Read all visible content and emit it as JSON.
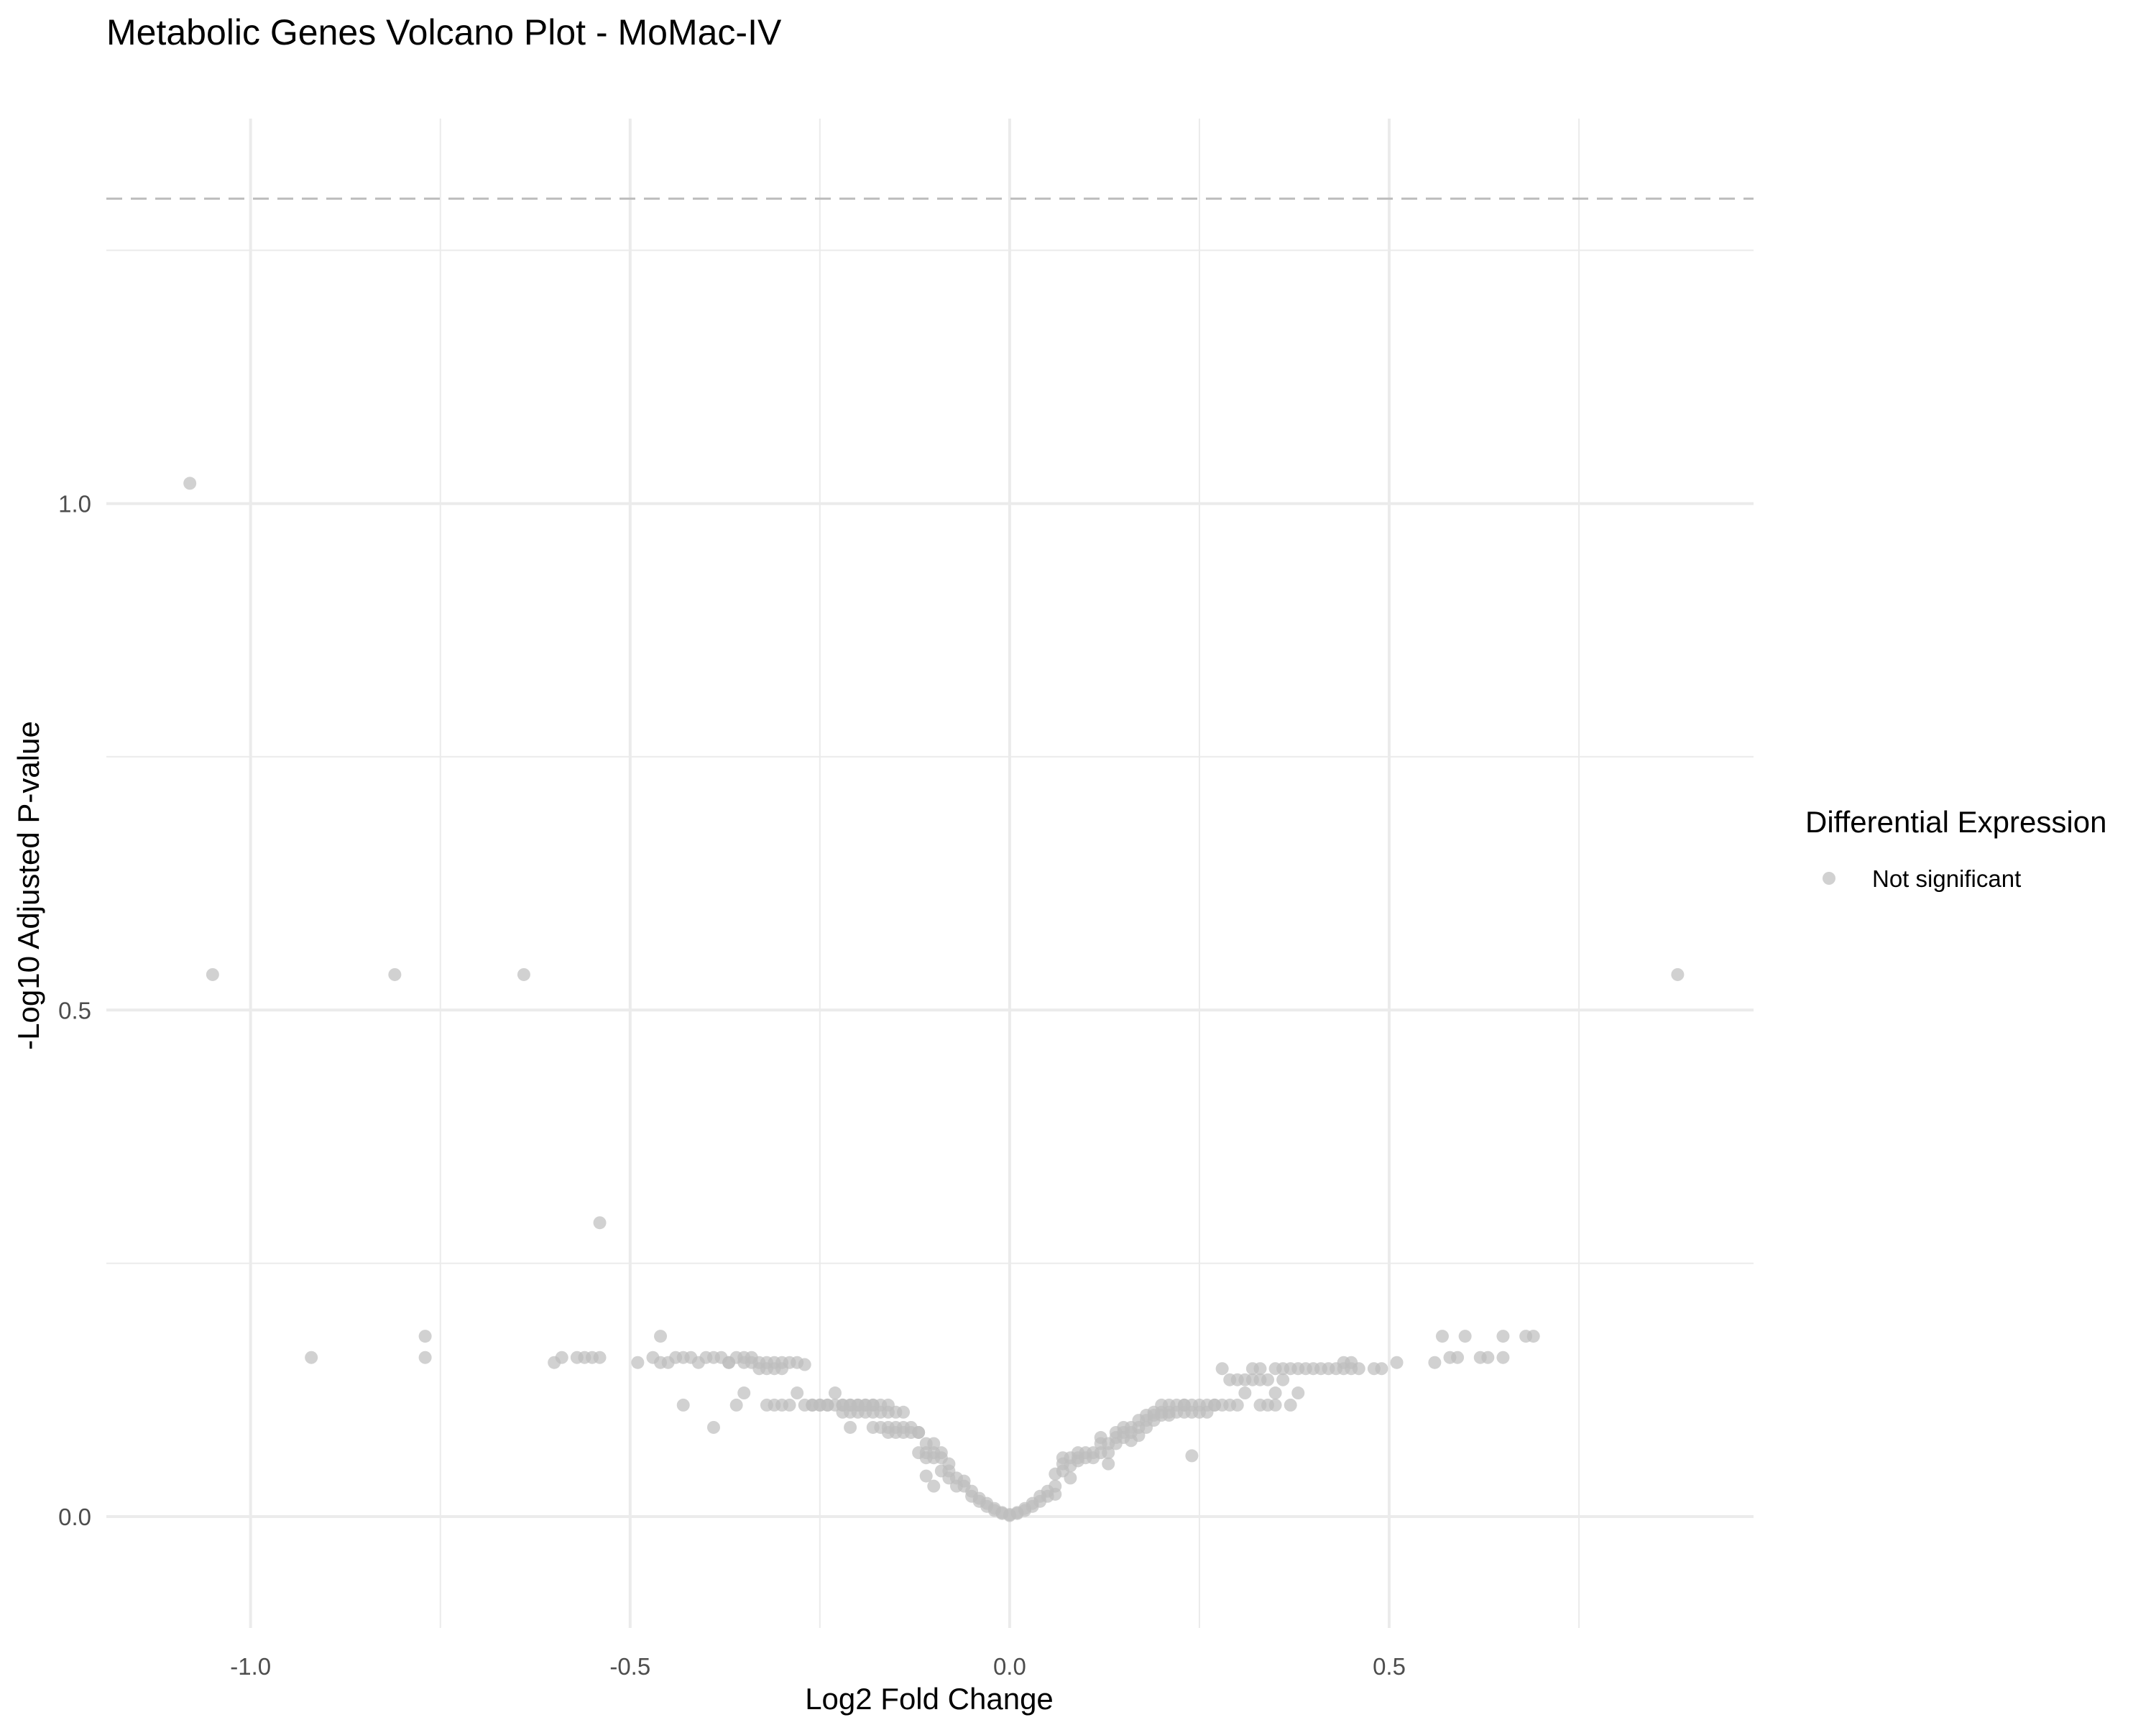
{
  "chart_data": {
    "type": "scatter",
    "title": "Metabolic Genes Volcano Plot - MoMac-IV",
    "xlabel": "Log2 Fold Change",
    "ylabel": "-Log10 Adjusted P-value",
    "xlim": [
      -1.19,
      0.98
    ],
    "ylim": [
      -0.11,
      1.38
    ],
    "x_ticks": [
      -1.0,
      -0.5,
      0.0,
      0.5
    ],
    "x_tick_labels": [
      "-1.0",
      "-0.5",
      "0.0",
      "0.5"
    ],
    "y_ticks": [
      0.0,
      0.5,
      1.0
    ],
    "y_tick_labels": [
      "0.0",
      "0.5",
      "1.0"
    ],
    "threshold_line_y": 1.301,
    "grid": true,
    "legend": {
      "title": "Differential Expression",
      "position": "right",
      "entries": [
        {
          "label": "Not significant",
          "color": "#bdbdbd"
        }
      ]
    },
    "series": [
      {
        "name": "Not significant",
        "color": "#bdbdbd",
        "points": [
          [
            -1.08,
            1.02
          ],
          [
            -1.05,
            0.535
          ],
          [
            -0.81,
            0.535
          ],
          [
            -0.64,
            0.535
          ],
          [
            0.88,
            0.535
          ],
          [
            -0.54,
            0.29
          ],
          [
            -0.92,
            0.157
          ],
          [
            -0.77,
            0.178
          ],
          [
            -0.77,
            0.157
          ],
          [
            -0.6,
            0.152
          ],
          [
            -0.59,
            0.157
          ],
          [
            -0.57,
            0.157
          ],
          [
            -0.56,
            0.157
          ],
          [
            -0.55,
            0.157
          ],
          [
            -0.54,
            0.157
          ],
          [
            -0.49,
            0.152
          ],
          [
            -0.47,
            0.157
          ],
          [
            -0.46,
            0.178
          ],
          [
            -0.46,
            0.152
          ],
          [
            -0.45,
            0.152
          ],
          [
            -0.44,
            0.157
          ],
          [
            -0.43,
            0.157
          ],
          [
            -0.43,
            0.11
          ],
          [
            -0.42,
            0.157
          ],
          [
            -0.41,
            0.152
          ],
          [
            -0.4,
            0.157
          ],
          [
            -0.39,
            0.157
          ],
          [
            -0.39,
            0.088
          ],
          [
            -0.38,
            0.157
          ],
          [
            -0.37,
            0.152
          ],
          [
            -0.37,
            0.152
          ],
          [
            -0.36,
            0.157
          ],
          [
            -0.36,
            0.11
          ],
          [
            -0.35,
            0.157
          ],
          [
            -0.35,
            0.152
          ],
          [
            -0.35,
            0.122
          ],
          [
            -0.34,
            0.152
          ],
          [
            -0.34,
            0.157
          ],
          [
            -0.33,
            0.152
          ],
          [
            -0.33,
            0.146
          ],
          [
            -0.32,
            0.152
          ],
          [
            -0.32,
            0.11
          ],
          [
            -0.32,
            0.146
          ],
          [
            -0.31,
            0.152
          ],
          [
            -0.31,
            0.11
          ],
          [
            -0.31,
            0.146
          ],
          [
            -0.3,
            0.152
          ],
          [
            -0.3,
            0.11
          ],
          [
            -0.3,
            0.146
          ],
          [
            -0.29,
            0.152
          ],
          [
            -0.29,
            0.11
          ],
          [
            -0.28,
            0.152
          ],
          [
            -0.28,
            0.122
          ],
          [
            -0.27,
            0.15
          ],
          [
            -0.27,
            0.11
          ],
          [
            -0.26,
            0.11
          ],
          [
            -0.26,
            0.11
          ],
          [
            -0.25,
            0.11
          ],
          [
            -0.25,
            0.11
          ],
          [
            -0.24,
            0.11
          ],
          [
            -0.24,
            0.11
          ],
          [
            -0.23,
            0.122
          ],
          [
            -0.23,
            0.11
          ],
          [
            -0.22,
            0.11
          ],
          [
            -0.22,
            0.11
          ],
          [
            -0.22,
            0.103
          ],
          [
            -0.21,
            0.11
          ],
          [
            -0.21,
            0.11
          ],
          [
            -0.21,
            0.103
          ],
          [
            -0.21,
            0.088
          ],
          [
            -0.2,
            0.11
          ],
          [
            -0.2,
            0.11
          ],
          [
            -0.2,
            0.103
          ],
          [
            -0.19,
            0.11
          ],
          [
            -0.19,
            0.103
          ],
          [
            -0.19,
            0.11
          ],
          [
            -0.18,
            0.11
          ],
          [
            -0.18,
            0.11
          ],
          [
            -0.18,
            0.103
          ],
          [
            -0.18,
            0.088
          ],
          [
            -0.17,
            0.11
          ],
          [
            -0.17,
            0.103
          ],
          [
            -0.17,
            0.088
          ],
          [
            -0.16,
            0.11
          ],
          [
            -0.16,
            0.103
          ],
          [
            -0.16,
            0.088
          ],
          [
            -0.16,
            0.083
          ],
          [
            -0.15,
            0.103
          ],
          [
            -0.15,
            0.088
          ],
          [
            -0.15,
            0.083
          ],
          [
            -0.14,
            0.103
          ],
          [
            -0.14,
            0.088
          ],
          [
            -0.14,
            0.083
          ],
          [
            -0.13,
            0.088
          ],
          [
            -0.13,
            0.083
          ],
          [
            -0.12,
            0.083
          ],
          [
            -0.12,
            0.083
          ],
          [
            -0.12,
            0.063
          ],
          [
            -0.11,
            0.072
          ],
          [
            -0.11,
            0.063
          ],
          [
            -0.11,
            0.04
          ],
          [
            -0.11,
            0.058
          ],
          [
            -0.1,
            0.063
          ],
          [
            -0.1,
            0.058
          ],
          [
            -0.1,
            0.072
          ],
          [
            -0.1,
            0.03
          ],
          [
            -0.09,
            0.058
          ],
          [
            -0.09,
            0.045
          ],
          [
            -0.09,
            0.063
          ],
          [
            -0.08,
            0.045
          ],
          [
            -0.08,
            0.038
          ],
          [
            -0.08,
            0.052
          ],
          [
            -0.07,
            0.038
          ],
          [
            -0.07,
            0.03
          ],
          [
            -0.06,
            0.035
          ],
          [
            -0.06,
            0.03
          ],
          [
            -0.05,
            0.025
          ],
          [
            -0.05,
            0.02
          ],
          [
            -0.04,
            0.018
          ],
          [
            -0.04,
            0.015
          ],
          [
            -0.03,
            0.013
          ],
          [
            -0.03,
            0.01
          ],
          [
            -0.02,
            0.008
          ],
          [
            -0.02,
            0.006
          ],
          [
            -0.01,
            0.004
          ],
          [
            -0.01,
            0.003
          ],
          [
            0.0,
            0.002
          ],
          [
            0.0,
            0.001
          ],
          [
            0.01,
            0.003
          ],
          [
            0.01,
            0.004
          ],
          [
            0.02,
            0.006
          ],
          [
            0.02,
            0.008
          ],
          [
            0.03,
            0.01
          ],
          [
            0.03,
            0.013
          ],
          [
            0.04,
            0.015
          ],
          [
            0.04,
            0.02
          ],
          [
            0.05,
            0.025
          ],
          [
            0.05,
            0.02
          ],
          [
            0.06,
            0.022
          ],
          [
            0.06,
            0.03
          ],
          [
            0.06,
            0.042
          ],
          [
            0.07,
            0.045
          ],
          [
            0.07,
            0.052
          ],
          [
            0.07,
            0.058
          ],
          [
            0.08,
            0.038
          ],
          [
            0.08,
            0.05
          ],
          [
            0.08,
            0.058
          ],
          [
            0.09,
            0.055
          ],
          [
            0.09,
            0.063
          ],
          [
            0.09,
            0.058
          ],
          [
            0.1,
            0.063
          ],
          [
            0.1,
            0.058
          ],
          [
            0.11,
            0.063
          ],
          [
            0.11,
            0.058
          ],
          [
            0.12,
            0.078
          ],
          [
            0.12,
            0.063
          ],
          [
            0.12,
            0.072
          ],
          [
            0.13,
            0.063
          ],
          [
            0.13,
            0.072
          ],
          [
            0.13,
            0.052
          ],
          [
            0.14,
            0.078
          ],
          [
            0.14,
            0.083
          ],
          [
            0.14,
            0.072
          ],
          [
            0.15,
            0.083
          ],
          [
            0.15,
            0.088
          ],
          [
            0.15,
            0.078
          ],
          [
            0.16,
            0.083
          ],
          [
            0.16,
            0.088
          ],
          [
            0.16,
            0.075
          ],
          [
            0.17,
            0.088
          ],
          [
            0.17,
            0.095
          ],
          [
            0.17,
            0.08
          ],
          [
            0.18,
            0.095
          ],
          [
            0.18,
            0.088
          ],
          [
            0.18,
            0.1
          ],
          [
            0.19,
            0.1
          ],
          [
            0.19,
            0.095
          ],
          [
            0.19,
            0.103
          ],
          [
            0.2,
            0.103
          ],
          [
            0.2,
            0.11
          ],
          [
            0.2,
            0.1
          ],
          [
            0.21,
            0.103
          ],
          [
            0.21,
            0.11
          ],
          [
            0.21,
            0.1
          ],
          [
            0.22,
            0.103
          ],
          [
            0.22,
            0.11
          ],
          [
            0.23,
            0.11
          ],
          [
            0.23,
            0.103
          ],
          [
            0.23,
            0.11
          ],
          [
            0.24,
            0.11
          ],
          [
            0.24,
            0.103
          ],
          [
            0.24,
            0.06
          ],
          [
            0.25,
            0.11
          ],
          [
            0.25,
            0.103
          ],
          [
            0.26,
            0.11
          ],
          [
            0.26,
            0.103
          ],
          [
            0.27,
            0.11
          ],
          [
            0.27,
            0.11
          ],
          [
            0.28,
            0.11
          ],
          [
            0.28,
            0.146
          ],
          [
            0.29,
            0.11
          ],
          [
            0.29,
            0.135
          ],
          [
            0.3,
            0.11
          ],
          [
            0.3,
            0.135
          ],
          [
            0.31,
            0.122
          ],
          [
            0.31,
            0.135
          ],
          [
            0.32,
            0.135
          ],
          [
            0.32,
            0.146
          ],
          [
            0.33,
            0.11
          ],
          [
            0.33,
            0.135
          ],
          [
            0.33,
            0.146
          ],
          [
            0.34,
            0.11
          ],
          [
            0.34,
            0.135
          ],
          [
            0.35,
            0.146
          ],
          [
            0.35,
            0.122
          ],
          [
            0.35,
            0.11
          ],
          [
            0.36,
            0.146
          ],
          [
            0.36,
            0.135
          ],
          [
            0.37,
            0.146
          ],
          [
            0.37,
            0.11
          ],
          [
            0.38,
            0.146
          ],
          [
            0.38,
            0.122
          ],
          [
            0.39,
            0.146
          ],
          [
            0.4,
            0.146
          ],
          [
            0.41,
            0.146
          ],
          [
            0.42,
            0.146
          ],
          [
            0.43,
            0.146
          ],
          [
            0.44,
            0.146
          ],
          [
            0.44,
            0.152
          ],
          [
            0.45,
            0.146
          ],
          [
            0.45,
            0.152
          ],
          [
            0.46,
            0.146
          ],
          [
            0.48,
            0.146
          ],
          [
            0.49,
            0.146
          ],
          [
            0.51,
            0.152
          ],
          [
            0.56,
            0.152
          ],
          [
            0.57,
            0.178
          ],
          [
            0.58,
            0.157
          ],
          [
            0.59,
            0.157
          ],
          [
            0.6,
            0.178
          ],
          [
            0.62,
            0.157
          ],
          [
            0.63,
            0.157
          ],
          [
            0.65,
            0.178
          ],
          [
            0.65,
            0.157
          ],
          [
            0.68,
            0.178
          ],
          [
            0.69,
            0.178
          ]
        ]
      }
    ]
  }
}
